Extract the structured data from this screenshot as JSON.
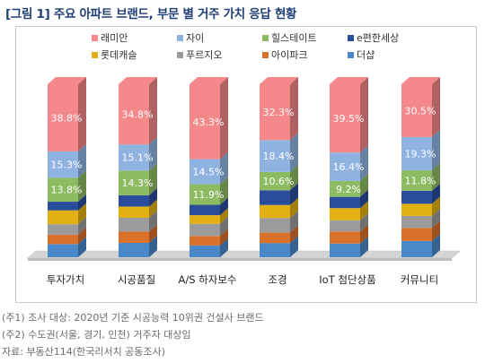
{
  "title": "[그림 1] 주요 아파트 브랜드, 부문 별 거주 가치 응답 현황",
  "notes": [
    "(주1) 조사 대상: 2020년 기준 시공능력 10위권 건설사 브랜드",
    "(주2) 수도권(서울, 경기, 인천) 거주자 대상임",
    "자료: 부동산114(한국리서치 공동조사)"
  ],
  "chart_data": {
    "type": "bar",
    "stacked": true,
    "normalized_percent": true,
    "categories": [
      "투자가치",
      "시공품질",
      "A/S 하자보수",
      "조경",
      "IoT 첨단상품",
      "커뮤니티"
    ],
    "legend_position": "top",
    "series": [
      {
        "name": "래미안",
        "color": "#f4888a",
        "values": [
          38.8,
          34.8,
          43.3,
          32.3,
          39.5,
          30.5
        ]
      },
      {
        "name": "자이",
        "color": "#8fb3e1",
        "values": [
          15.3,
          15.1,
          14.5,
          18.4,
          16.4,
          19.3
        ]
      },
      {
        "name": "힐스테이트",
        "color": "#8dbb62",
        "values": [
          13.8,
          14.3,
          11.9,
          10.6,
          9.2,
          11.8
        ]
      },
      {
        "name": "e편한세상",
        "color": "#2a4d9b",
        "values": [
          5.0,
          6.5,
          6.0,
          8.5,
          6.5,
          7.5
        ]
      },
      {
        "name": "롯데캐슬",
        "color": "#e2b013",
        "values": [
          8.0,
          6.5,
          5.0,
          7.5,
          7.0,
          7.0
        ]
      },
      {
        "name": "푸르지오",
        "color": "#9b9b9b",
        "values": [
          6.0,
          8.0,
          7.0,
          8.5,
          6.5,
          7.0
        ]
      },
      {
        "name": "아이파크",
        "color": "#d9712a",
        "values": [
          5.5,
          6.5,
          5.5,
          6.0,
          7.0,
          7.5
        ]
      },
      {
        "name": "더샵",
        "color": "#4a88c9",
        "values": [
          7.6,
          8.3,
          6.8,
          8.2,
          7.9,
          9.4
        ]
      }
    ],
    "labeled_series": [
      "래미안",
      "자이",
      "힐스테이트"
    ],
    "label_suffix": "%"
  }
}
